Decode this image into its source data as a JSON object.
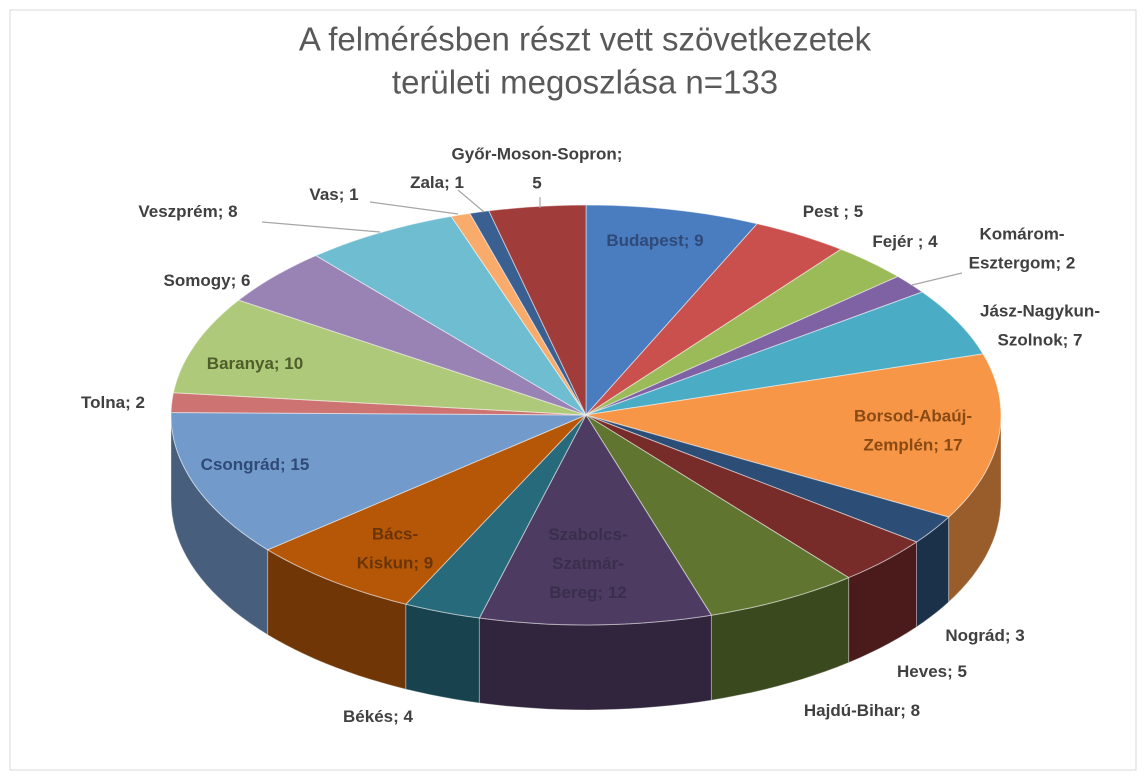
{
  "chart_data": {
    "type": "pie3d",
    "title": "A felmérésben  részt vett szövetkezetek\nterületi megoszlása n=133",
    "values": [
      9,
      5,
      4,
      2,
      7,
      17,
      3,
      5,
      8,
      12,
      4,
      9,
      15,
      2,
      10,
      6,
      8,
      1,
      1,
      5
    ],
    "value_labels": [
      "Budapest; 9",
      "Pest ; 5",
      "Fejér ; 4",
      "Komárom-\nEsztergom; 2",
      "Jász-Nagykun-\nSzolnok; 7",
      "Borsod-Abaúj-\nZemplén; 17",
      "Nográd; 3",
      "Heves; 5",
      "Hajdú-Bihar; 8",
      "Szabolcs-\nSzatmár-\nBereg; 12",
      "Békés; 4",
      "Bács-\nKiskun; 9",
      "Csongrád; 15",
      "Tolna; 2",
      "Baranya; 10",
      "Somogy; 6",
      "Veszprém; 8",
      "Vas; 1",
      "Zala; 1",
      "Győr-Moson-Sopron;\n5"
    ],
    "colors": [
      "#4a7cc0",
      "#c9504c",
      "#9bbb59",
      "#7f62a3",
      "#4bacc6",
      "#f79646",
      "#2c4d75",
      "#772c2a",
      "#5f7530",
      "#4d3b62",
      "#276a7c",
      "#b65708",
      "#729aca",
      "#cd7371",
      "#afc97a",
      "#9983b5",
      "#6fbdd1",
      "#f9ab6b",
      "#3a5f91",
      "#a03c3a"
    ]
  }
}
